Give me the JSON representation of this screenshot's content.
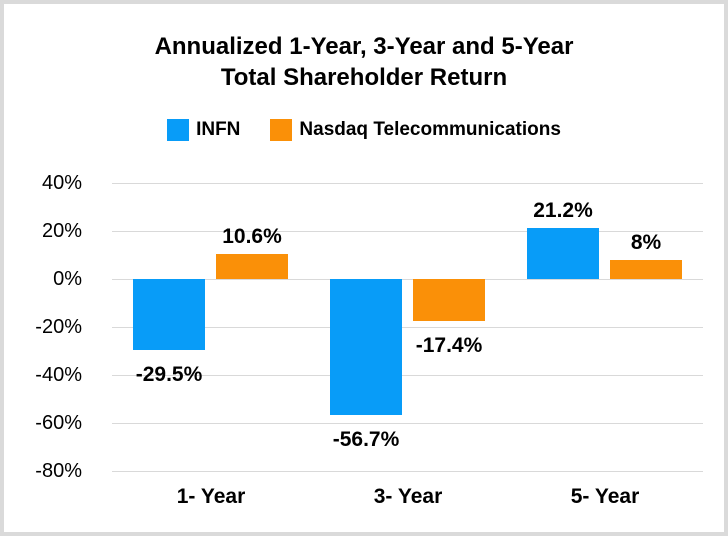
{
  "title": {
    "line1": "Annualized 1-Year, 3-Year and 5-Year",
    "line2": "Total Shareholder Return"
  },
  "legend": {
    "items": [
      {
        "label": "INFN",
        "color": "#089CF8"
      },
      {
        "label": "Nasdaq Telecommunications",
        "color": "#FA9008"
      }
    ]
  },
  "colors": {
    "infn_blue": "#089CF8",
    "nasdaq_orange": "#FA9008",
    "gridline": "#d9d9d9",
    "border": "#dadada",
    "text": "#000000",
    "background": "#ffffff"
  },
  "chart_data": {
    "type": "bar",
    "title": "Annualized 1-Year, 3-Year and 5-Year Total Shareholder Return",
    "categories": [
      "1- Year",
      "3- Year",
      "5- Year"
    ],
    "series": [
      {
        "name": "INFN",
        "color": "#089CF8",
        "values": [
          -29.5,
          -56.7,
          21.2
        ],
        "labels": [
          "-29.5%",
          "-56.7%",
          "21.2%"
        ]
      },
      {
        "name": "Nasdaq Telecommunications",
        "color": "#FA9008",
        "values": [
          10.6,
          -17.4,
          8
        ],
        "labels": [
          "10.6%",
          "-17.4%",
          "8%"
        ]
      }
    ],
    "yticks": [
      40,
      20,
      0,
      -20,
      -40,
      -60,
      -80
    ],
    "ytick_labels": [
      "40%",
      "20%",
      "0%",
      "-20%",
      "-40%",
      "-60%",
      "-80%"
    ],
    "ylim": [
      -80,
      40
    ],
    "xlabel": "",
    "ylabel": "",
    "grid": true,
    "legend_position": "top",
    "data_label_position": "outside-end"
  }
}
